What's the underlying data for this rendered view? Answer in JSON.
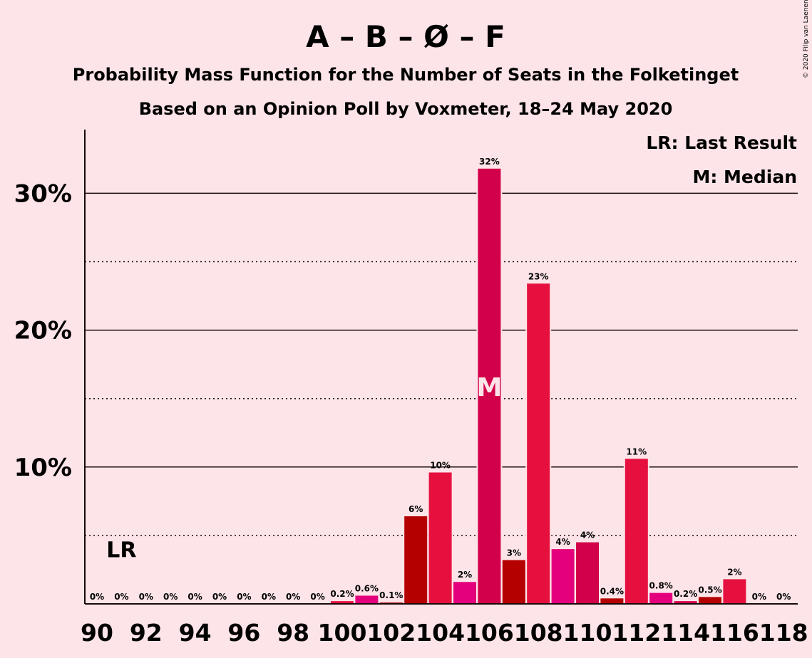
{
  "chart_data": {
    "type": "bar",
    "title": "A – B – Ø – F",
    "subtitle": "Probability Mass Function for the Number of Seats in the Folketinget",
    "subtitle2": "Based on an Opinion Poll by Voxmeter, 18–24 May 2020",
    "copyright": "© 2020 Filip van Laenen",
    "legend": [
      "LR: Last Result",
      "M: Median"
    ],
    "legend_position": "top-right",
    "x": [
      90,
      91,
      92,
      93,
      94,
      95,
      96,
      97,
      98,
      99,
      100,
      101,
      102,
      103,
      104,
      105,
      106,
      107,
      108,
      109,
      110,
      111,
      112,
      113,
      114,
      115,
      116,
      117,
      118
    ],
    "values": [
      0,
      0,
      0,
      0,
      0,
      0,
      0,
      0,
      0,
      0,
      0.2,
      0.6,
      0.1,
      6.4,
      9.6,
      1.6,
      31.8,
      3.2,
      23.4,
      4.0,
      4.5,
      0.4,
      10.6,
      0.8,
      0.2,
      0.5,
      1.8,
      0,
      0
    ],
    "labels": [
      "0%",
      "0%",
      "0%",
      "0%",
      "0%",
      "0%",
      "0%",
      "0%",
      "0%",
      "0%",
      "0.2%",
      "0.6%",
      "0.1%",
      "6%",
      "10%",
      "2%",
      "32%",
      "3%",
      "23%",
      "4%",
      "4%",
      "0.4%",
      "11%",
      "0.8%",
      "0.2%",
      "0.5%",
      "2%",
      "0%",
      "0%"
    ],
    "bar_colors": [
      "#e6103f",
      "#e6103f",
      "#e6103f",
      "#e6103f",
      "#e6103f",
      "#e6103f",
      "#e6103f",
      "#e6103f",
      "#e6103f",
      "#e6103f",
      "#e6103f",
      "#e4007c",
      "#b50000",
      "#b50000",
      "#e6103f",
      "#e4007c",
      "#d2004a",
      "#b50000",
      "#e6103f",
      "#e4007c",
      "#d2004a",
      "#b50000",
      "#e6103f",
      "#e4007c",
      "#d2004a",
      "#b50000",
      "#e6103f",
      "#e6103f",
      "#e6103f"
    ],
    "x_tick_labels": [
      "90",
      "92",
      "94",
      "96",
      "98",
      "100",
      "102",
      "104",
      "106",
      "108",
      "110",
      "112",
      "114",
      "116",
      "118"
    ],
    "y_ticks": [
      10,
      20,
      30
    ],
    "y_tick_labels": [
      "10%",
      "20%",
      "30%"
    ],
    "y_minor_ticks": [
      5,
      15,
      25
    ],
    "ylim": [
      0,
      34.6
    ],
    "median": 106,
    "median_marker": "M",
    "last_result": 91,
    "last_result_marker": "LR"
  }
}
